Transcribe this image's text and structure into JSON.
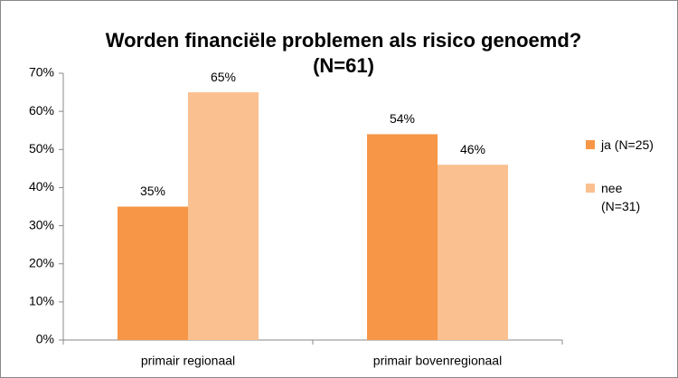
{
  "chart_data": {
    "type": "bar",
    "title": [
      "Worden financiële problemen als risico genoemd?",
      "(N=61)"
    ],
    "categories": [
      "primair regionaal",
      "primair bovenregionaal"
    ],
    "series": [
      {
        "name": "ja (N=25)",
        "color": "#f79646",
        "values": [
          35,
          54
        ],
        "value_labels": [
          "35%",
          "54%"
        ]
      },
      {
        "name": "nee (N=31)",
        "color": "#fac090",
        "values": [
          65,
          46
        ],
        "value_labels": [
          "65%",
          "46%"
        ]
      }
    ],
    "ylim": [
      0,
      70
    ],
    "yticks": [
      {
        "value": 0,
        "label": "0%"
      },
      {
        "value": 10,
        "label": "10%"
      },
      {
        "value": 20,
        "label": "20%"
      },
      {
        "value": 30,
        "label": "30%"
      },
      {
        "value": 40,
        "label": "40%"
      },
      {
        "value": 50,
        "label": "50%"
      },
      {
        "value": 60,
        "label": "60%"
      },
      {
        "value": 70,
        "label": "70%"
      }
    ],
    "grid": false,
    "legend": "right"
  }
}
